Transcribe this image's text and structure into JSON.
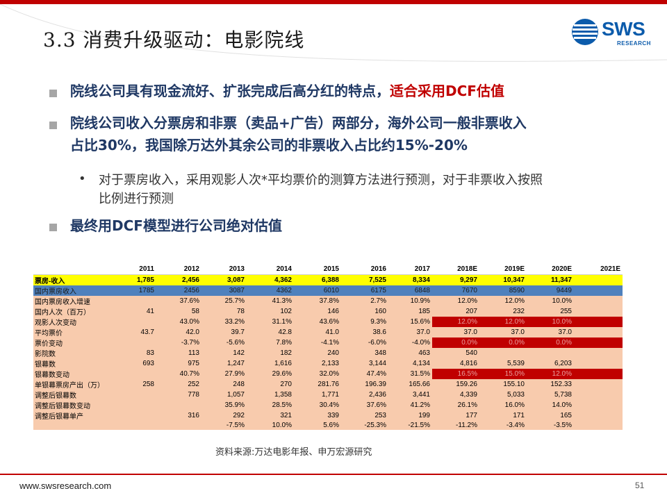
{
  "header": {
    "title": "3.3 消费升级驱动：电影院线",
    "logo_text": "SWS",
    "logo_sub": "RESEARCH",
    "accent_color": "#c00000",
    "brand_color": "#0b5bab"
  },
  "bullets": [
    {
      "text": "院线公司具有现金流好、扩张完成后高分红的特点，",
      "highlight": "适合采用DCF估值"
    },
    {
      "line1": "院线公司收入分票房和非票（卖品+广告）两部分，海外公司一般非票收入",
      "line2": "占比30%，我国除万达外其余公司的非票收入占比约15%-20%"
    },
    {
      "line1": "对于票房收入，采用观影人次*平均票价的测算方法进行预测，对于非票收入按照",
      "line2": "比例进行预测",
      "marker": "•"
    },
    {
      "text": "最终用DCF模型进行公司绝对估值"
    }
  ],
  "table": {
    "years": [
      "2011",
      "2012",
      "2013",
      "2014",
      "2015",
      "2016",
      "2017",
      "2018E",
      "2019E",
      "2020E",
      "2021E"
    ],
    "rows": [
      {
        "label": "票房-收入",
        "style": "yellow",
        "cells": [
          "1,785",
          "2,456",
          "3,087",
          "4,362",
          "6,388",
          "7,525",
          "8,334",
          "9,297",
          "10,347",
          "11,347",
          ""
        ]
      },
      {
        "label": "国内票房收入",
        "style": "blue",
        "cells": [
          "1785",
          "2456",
          "3087",
          "4362",
          "6010",
          "6175",
          "6848",
          "7670",
          "8590",
          "9449",
          ""
        ]
      },
      {
        "label": "国内票房收入增速",
        "style": "body",
        "cells": [
          "",
          "37.6%",
          "25.7%",
          "41.3%",
          "37.8%",
          "2.7%",
          "10.9%",
          "12.0%",
          "12.0%",
          "10.0%",
          ""
        ]
      },
      {
        "label": "国内人次（百万）",
        "style": "body",
        "cells": [
          "41",
          "58",
          "78",
          "102",
          "146",
          "160",
          "185",
          "207",
          "232",
          "255",
          ""
        ]
      },
      {
        "label": "观影人次变动",
        "style": "body",
        "cells": [
          "",
          "43.0%",
          "33.2%",
          "31.1%",
          "43.6%",
          "9.3%",
          "15.6%",
          "12.0%",
          "12.0%",
          "10.0%",
          ""
        ],
        "dark": [
          7,
          8,
          9,
          10
        ]
      },
      {
        "label": "平均票价",
        "style": "body",
        "cells": [
          "43.7",
          "42.0",
          "39.7",
          "42.8",
          "41.0",
          "38.6",
          "37.0",
          "37.0",
          "37.0",
          "37.0",
          ""
        ]
      },
      {
        "label": "票价变动",
        "style": "body",
        "cells": [
          "",
          "-3.7%",
          "-5.6%",
          "7.8%",
          "-4.1%",
          "-6.0%",
          "-4.0%",
          "0.0%",
          "0.0%",
          "0.0%",
          ""
        ],
        "dark": [
          7,
          8,
          9,
          10
        ]
      },
      {
        "label": "影院数",
        "style": "body",
        "cells": [
          "83",
          "113",
          "142",
          "182",
          "240",
          "348",
          "463",
          "540",
          "",
          "",
          ""
        ]
      },
      {
        "label": "银幕数",
        "style": "body",
        "cells": [
          "693",
          "975",
          "1,247",
          "1,616",
          "2,133",
          "3,144",
          "4,134",
          "4,816",
          "5,539",
          "6,203",
          ""
        ]
      },
      {
        "label": "银幕数变动",
        "style": "body",
        "cells": [
          "",
          "40.7%",
          "27.9%",
          "29.6%",
          "32.0%",
          "47.4%",
          "31.5%",
          "16.5%",
          "15.0%",
          "12.0%",
          ""
        ],
        "dark": [
          7,
          8,
          9,
          10
        ]
      },
      {
        "label": "单银幕票房产出（万）",
        "style": "body",
        "cells": [
          "258",
          "252",
          "248",
          "270",
          "281.76",
          "196.39",
          "165.66",
          "159.26",
          "155.10",
          "152.33",
          ""
        ]
      },
      {
        "label": "调整后银幕数",
        "style": "body",
        "cells": [
          "",
          "778",
          "1,057",
          "1,358",
          "1,771",
          "2,436",
          "3,441",
          "4,339",
          "5,033",
          "5,738",
          ""
        ]
      },
      {
        "label": "调整后银幕数变动",
        "style": "body",
        "cells": [
          "",
          "",
          "35.9%",
          "28.5%",
          "30.4%",
          "37.6%",
          "41.2%",
          "26.1%",
          "16.0%",
          "14.0%",
          ""
        ]
      },
      {
        "label": "调整后银幕单产",
        "style": "body",
        "cells": [
          "",
          "316",
          "292",
          "321",
          "339",
          "253",
          "199",
          "177",
          "171",
          "165",
          ""
        ]
      },
      {
        "label": "",
        "style": "body",
        "cells": [
          "",
          "",
          "-7.5%",
          "10.0%",
          "5.6%",
          "-25.3%",
          "-21.5%",
          "-11.2%",
          "-3.4%",
          "-3.5%",
          ""
        ]
      }
    ]
  },
  "source": "资料来源:万达电影年报、申万宏源研究",
  "footer": {
    "url": "www.swsresearch.com",
    "page": "51"
  }
}
